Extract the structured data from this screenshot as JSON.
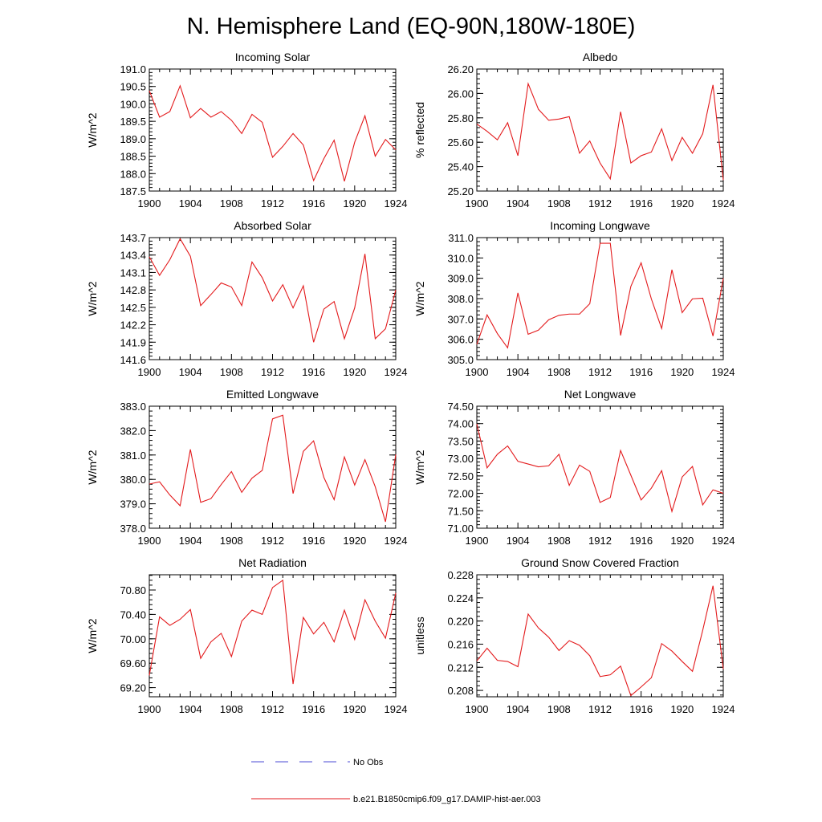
{
  "figure_title": "N. Hemisphere Land (EQ-90N,180W-180E)",
  "series_color": "#e31a1c",
  "obs_color": "#4b4bd6",
  "legend": {
    "obs_label": "No Obs",
    "model_label": "b.e21.B1850cmip6.f09_g17.DAMIP-hist-aer.003"
  },
  "chart_data": [
    {
      "type": "line",
      "title": "Incoming Solar",
      "ylabel": "W/m^2",
      "xlim": [
        1900,
        1924
      ],
      "ylim": [
        187.5,
        191.0
      ],
      "xticks": [
        "1900",
        "1904",
        "1908",
        "1912",
        "1916",
        "1920",
        "1924"
      ],
      "yticks": [
        "187.5",
        "188.0",
        "188.5",
        "189.0",
        "189.5",
        "190.0",
        "190.5",
        "191.0"
      ],
      "x": [
        1900,
        1901,
        1902,
        1903,
        1904,
        1905,
        1906,
        1907,
        1908,
        1909,
        1910,
        1911,
        1912,
        1913,
        1914,
        1915,
        1916,
        1917,
        1918,
        1919,
        1920,
        1921,
        1922,
        1923,
        1924
      ],
      "series": [
        {
          "values": [
            190.38,
            189.62,
            189.78,
            190.52,
            189.6,
            189.87,
            189.62,
            189.78,
            189.53,
            189.15,
            189.7,
            189.47,
            188.47,
            188.78,
            189.15,
            188.82,
            187.8,
            188.43,
            188.96,
            187.78,
            188.9,
            189.66,
            188.5,
            188.98,
            188.68
          ]
        }
      ]
    },
    {
      "type": "line",
      "title": "Albedo",
      "ylabel": "% reflected",
      "xlim": [
        1900,
        1924
      ],
      "ylim": [
        25.2,
        26.2
      ],
      "xticks": [
        "1900",
        "1904",
        "1908",
        "1912",
        "1916",
        "1920",
        "1924"
      ],
      "yticks": [
        "25.20",
        "25.40",
        "25.60",
        "25.80",
        "26.00",
        "26.20"
      ],
      "x": [
        1900,
        1901,
        1902,
        1903,
        1904,
        1905,
        1906,
        1907,
        1908,
        1909,
        1910,
        1911,
        1912,
        1913,
        1914,
        1915,
        1916,
        1917,
        1918,
        1919,
        1920,
        1921,
        1922,
        1923,
        1924
      ],
      "series": [
        {
          "values": [
            25.75,
            25.69,
            25.62,
            25.76,
            25.49,
            26.08,
            25.87,
            25.78,
            25.79,
            25.81,
            25.51,
            25.61,
            25.43,
            25.3,
            25.85,
            25.43,
            25.49,
            25.52,
            25.71,
            25.45,
            25.64,
            25.51,
            25.67,
            26.07,
            25.29
          ]
        }
      ]
    },
    {
      "type": "line",
      "title": "Absorbed Solar",
      "ylabel": "W/m^2",
      "xlim": [
        1900,
        1924
      ],
      "ylim": [
        141.6,
        143.7
      ],
      "xticks": [
        "1900",
        "1904",
        "1908",
        "1912",
        "1916",
        "1920",
        "1924"
      ],
      "yticks": [
        "141.6",
        "141.9",
        "142.2",
        "142.5",
        "142.8",
        "143.1",
        "143.4",
        "143.7"
      ],
      "x": [
        1900,
        1901,
        1902,
        1903,
        1904,
        1905,
        1906,
        1907,
        1908,
        1909,
        1910,
        1911,
        1912,
        1913,
        1914,
        1915,
        1916,
        1917,
        1918,
        1919,
        1920,
        1921,
        1922,
        1923,
        1924
      ],
      "series": [
        {
          "values": [
            143.37,
            143.05,
            143.32,
            143.68,
            143.38,
            142.53,
            142.72,
            142.92,
            142.85,
            142.53,
            143.28,
            143.01,
            142.61,
            142.89,
            142.49,
            142.87,
            141.9,
            142.47,
            142.6,
            141.96,
            142.49,
            143.42,
            141.96,
            142.13,
            142.8
          ]
        }
      ]
    },
    {
      "type": "line",
      "title": "Incoming Longwave",
      "ylabel": "W/m^2",
      "xlim": [
        1900,
        1924
      ],
      "ylim": [
        305.0,
        311.0
      ],
      "xticks": [
        "1900",
        "1904",
        "1908",
        "1912",
        "1916",
        "1920",
        "1924"
      ],
      "yticks": [
        "305.0",
        "306.0",
        "307.0",
        "308.0",
        "309.0",
        "310.0",
        "311.0"
      ],
      "x": [
        1900,
        1901,
        1902,
        1903,
        1904,
        1905,
        1906,
        1907,
        1908,
        1909,
        1910,
        1911,
        1912,
        1913,
        1914,
        1915,
        1916,
        1917,
        1918,
        1919,
        1920,
        1921,
        1922,
        1923,
        1924
      ],
      "series": [
        {
          "values": [
            305.75,
            307.2,
            306.28,
            305.58,
            308.28,
            306.25,
            306.45,
            306.96,
            307.18,
            307.24,
            307.24,
            307.75,
            310.72,
            310.72,
            306.19,
            308.6,
            309.76,
            307.98,
            306.53,
            309.42,
            307.31,
            307.99,
            308.02,
            306.16,
            309.0
          ]
        }
      ]
    },
    {
      "type": "line",
      "title": "Emitted Longwave",
      "ylabel": "W/m^2",
      "xlim": [
        1900,
        1924
      ],
      "ylim": [
        378.0,
        383.0
      ],
      "xticks": [
        "1900",
        "1904",
        "1908",
        "1912",
        "1916",
        "1920",
        "1924"
      ],
      "yticks": [
        "378.0",
        "379.0",
        "380.0",
        "381.0",
        "382.0",
        "383.0"
      ],
      "x": [
        1900,
        1901,
        1902,
        1903,
        1904,
        1905,
        1906,
        1907,
        1908,
        1909,
        1910,
        1911,
        1912,
        1913,
        1914,
        1915,
        1916,
        1917,
        1918,
        1919,
        1920,
        1921,
        1922,
        1923,
        1924
      ],
      "series": [
        {
          "values": [
            379.81,
            379.9,
            379.36,
            378.92,
            381.23,
            379.06,
            379.21,
            379.79,
            380.32,
            379.47,
            380.05,
            380.37,
            382.48,
            382.63,
            379.42,
            381.15,
            381.58,
            380.08,
            379.17,
            380.92,
            379.77,
            380.81,
            379.7,
            378.26,
            381.02
          ]
        }
      ]
    },
    {
      "type": "line",
      "title": "Net Longwave",
      "ylabel": "W/m^2",
      "xlim": [
        1900,
        1924
      ],
      "ylim": [
        71.0,
        74.5
      ],
      "xticks": [
        "1900",
        "1904",
        "1908",
        "1912",
        "1916",
        "1920",
        "1924"
      ],
      "yticks": [
        "71.00",
        "71.50",
        "72.00",
        "72.50",
        "73.00",
        "73.50",
        "74.00",
        "74.50"
      ],
      "x": [
        1900,
        1901,
        1902,
        1903,
        1904,
        1905,
        1906,
        1907,
        1908,
        1909,
        1910,
        1911,
        1912,
        1913,
        1914,
        1915,
        1916,
        1917,
        1918,
        1919,
        1920,
        1921,
        1922,
        1923,
        1924
      ],
      "series": [
        {
          "values": [
            73.99,
            72.73,
            73.12,
            73.36,
            72.92,
            72.84,
            72.76,
            72.79,
            73.12,
            72.23,
            72.81,
            72.63,
            71.74,
            71.88,
            73.23,
            72.52,
            71.81,
            72.15,
            72.65,
            71.48,
            72.47,
            72.77,
            71.67,
            72.1,
            72.0
          ]
        }
      ]
    },
    {
      "type": "line",
      "title": "Net Radiation",
      "ylabel": "W/m^2",
      "xlim": [
        1900,
        1924
      ],
      "ylim": [
        69.05,
        71.05
      ],
      "xticks": [
        "1900",
        "1904",
        "1908",
        "1912",
        "1916",
        "1920",
        "1924"
      ],
      "yticks": [
        "69.20",
        "69.60",
        "70.00",
        "70.40",
        "70.80"
      ],
      "x": [
        1900,
        1901,
        1902,
        1903,
        1904,
        1905,
        1906,
        1907,
        1908,
        1909,
        1910,
        1911,
        1912,
        1913,
        1914,
        1915,
        1916,
        1917,
        1918,
        1919,
        1920,
        1921,
        1922,
        1923,
        1924
      ],
      "series": [
        {
          "values": [
            69.4,
            70.36,
            70.22,
            70.32,
            70.48,
            69.68,
            69.95,
            70.09,
            69.71,
            70.29,
            70.47,
            70.4,
            70.84,
            70.96,
            69.26,
            70.35,
            70.08,
            70.27,
            69.95,
            70.47,
            69.99,
            70.64,
            70.29,
            70.01,
            70.75
          ]
        }
      ]
    },
    {
      "type": "line",
      "title": "Ground Snow Covered Fraction",
      "ylabel": "unitless",
      "xlim": [
        1900,
        1924
      ],
      "ylim": [
        0.2069,
        0.228
      ],
      "xticks": [
        "1900",
        "1904",
        "1908",
        "1912",
        "1916",
        "1920",
        "1924"
      ],
      "yticks": [
        "0.208",
        "0.212",
        "0.216",
        "0.220",
        "0.224",
        "0.228"
      ],
      "x": [
        1900,
        1901,
        1902,
        1903,
        1904,
        1905,
        1906,
        1907,
        1908,
        1909,
        1910,
        1911,
        1912,
        1913,
        1914,
        1915,
        1916,
        1917,
        1918,
        1919,
        1920,
        1921,
        1922,
        1923,
        1924
      ],
      "series": [
        {
          "values": [
            0.2131,
            0.2153,
            0.2132,
            0.213,
            0.2121,
            0.2212,
            0.2188,
            0.2172,
            0.2149,
            0.2166,
            0.2158,
            0.214,
            0.2104,
            0.2107,
            0.2122,
            0.2071,
            0.2086,
            0.2102,
            0.2161,
            0.2148,
            0.213,
            0.2113,
            0.2184,
            0.2261,
            0.2117
          ]
        }
      ]
    }
  ]
}
